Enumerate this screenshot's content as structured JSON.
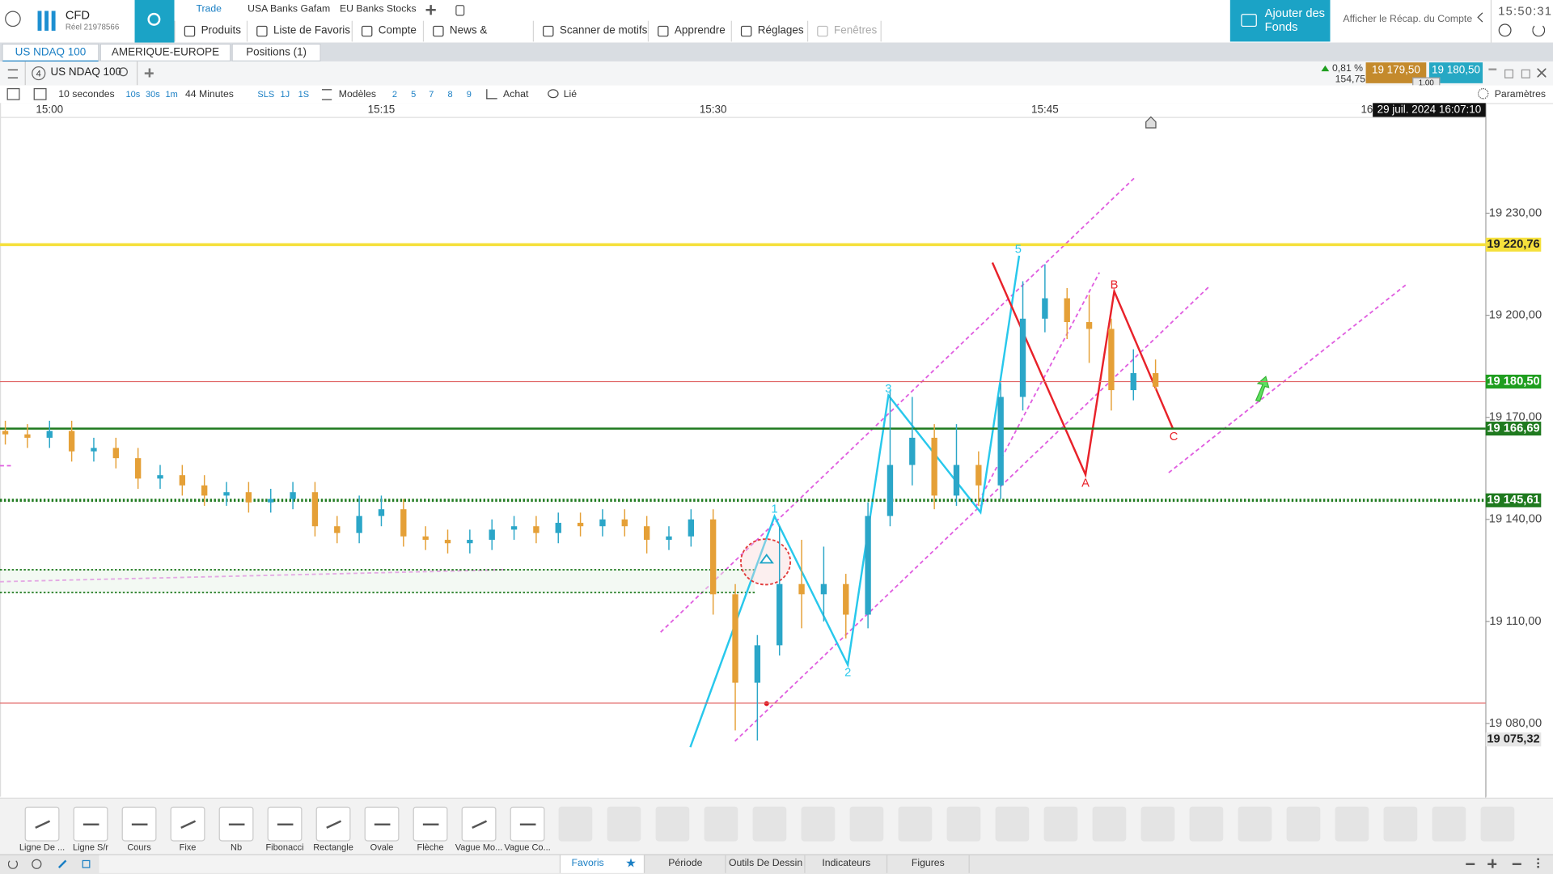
{
  "header": {
    "account_type": "CFD",
    "account_id": "Réel 21978566",
    "tabs": [
      "Trade",
      "USA Banks Gafam",
      "EU Banks Stocks"
    ],
    "menu": [
      "Produits",
      "Liste de Favoris",
      "Compte",
      "News & Analyses",
      "Scanner de motifs",
      "Apprendre",
      "Réglages",
      "Fenêtres"
    ],
    "fund_button": "Ajouter des Fonds",
    "account_summary": "Afficher le Récap. du Compte",
    "clock": "15:50:31"
  },
  "workspace_tabs": [
    "US NDAQ 100",
    "AMERIQUE-EUROPE",
    "Positions (1)"
  ],
  "instrument": {
    "badge": "4",
    "name": "US NDAQ 100",
    "change": "0,81 %",
    "change_points": "154,75",
    "sell": "19 179,50",
    "buy": "19 180,50",
    "quantity": "1.00"
  },
  "toolbar": {
    "interval": "10 secondes",
    "intervals": [
      "10s",
      "30s",
      "1m"
    ],
    "span": "44 Minutes",
    "ranges": [
      "SLS",
      "1J",
      "1S"
    ],
    "models": "Modèles",
    "numbers": [
      "2",
      "5",
      "7",
      "8",
      "9"
    ],
    "buy": "Achat",
    "linked": "Lié",
    "settings": "Paramètres"
  },
  "chart_data": {
    "type": "candlestick",
    "categories": [
      null,
      null,
      "15:00",
      null,
      null,
      null,
      null,
      null,
      null,
      null,
      null,
      null,
      null,
      null,
      null,
      null,
      null,
      "15:15",
      null,
      null,
      null,
      null,
      null,
      null,
      null,
      null,
      null,
      null,
      null,
      null,
      null,
      null,
      "15:30",
      null,
      null,
      null,
      null,
      null,
      null,
      null,
      null,
      null,
      null,
      null,
      null,
      null,
      null,
      "15:45",
      null,
      null,
      null,
      null,
      null
    ],
    "open": [
      19166,
      19165,
      19164,
      19166,
      19160,
      19161,
      19158,
      19152,
      19153,
      19150,
      19147,
      19148,
      19145,
      19146,
      19148,
      19138,
      19136,
      19141,
      19143,
      19135,
      19134,
      19133,
      19134,
      19137,
      19138,
      19136,
      19139,
      19138,
      19140,
      19138,
      19134,
      19135,
      19140,
      19118,
      19092,
      19103,
      19121,
      19118,
      19121,
      19112,
      19141,
      19156,
      19164,
      19147,
      19156,
      19150,
      19176,
      19199,
      19205,
      19198,
      19196,
      19178,
      19183
    ],
    "high": [
      19169,
      19168,
      19169,
      19169,
      19164,
      19164,
      19161,
      19156,
      19156,
      19153,
      19151,
      19151,
      19149,
      19151,
      19151,
      19141,
      19147,
      19147,
      19146,
      19138,
      19137,
      19137,
      19140,
      19141,
      19141,
      19142,
      19142,
      19143,
      19143,
      19141,
      19138,
      19143,
      19143,
      19121,
      19106,
      19138,
      19134,
      19132,
      19124,
      19145,
      19178,
      19176,
      19168,
      19168,
      19160,
      19180,
      19210,
      19215,
      19208,
      19206,
      19199,
      19190,
      19187
    ],
    "low": [
      19162,
      19161,
      19161,
      19157,
      19157,
      19155,
      19149,
      19149,
      19147,
      19144,
      19144,
      19142,
      19142,
      19143,
      19135,
      19133,
      19133,
      19138,
      19132,
      19131,
      19130,
      19130,
      19131,
      19134,
      19133,
      19133,
      19135,
      19135,
      19135,
      19130,
      19131,
      19132,
      19112,
      19078,
      19075,
      19100,
      19108,
      19110,
      19105,
      19108,
      19138,
      19150,
      19143,
      19144,
      19144,
      19146,
      19172,
      19195,
      19193,
      19186,
      19172,
      19175,
      19178
    ],
    "close": [
      19165,
      19164,
      19166,
      19160,
      19161,
      19158,
      19152,
      19153,
      19150,
      19147,
      19148,
      19145,
      19146,
      19148,
      19138,
      19136,
      19141,
      19143,
      19135,
      19134,
      19133,
      19134,
      19137,
      19138,
      19136,
      19139,
      19138,
      19140,
      19138,
      19134,
      19135,
      19140,
      19118,
      19092,
      19103,
      19121,
      19118,
      19121,
      19112,
      19141,
      19156,
      19164,
      19147,
      19156,
      19150,
      19176,
      19199,
      19205,
      19198,
      19196,
      19178,
      19183,
      19179
    ],
    "up_color": "#2ba6c8",
    "down_color": "#e5a037",
    "ylim": [
      19058.2,
      19258.3
    ],
    "yticks": [
      {
        "value": 19230,
        "label": "19 230,00"
      },
      {
        "value": 19200,
        "label": "19 200,00"
      },
      {
        "value": 19170,
        "label": "19 170,00"
      },
      {
        "value": 19140,
        "label": "19 140,00"
      },
      {
        "value": 19110,
        "label": "19 110,00"
      },
      {
        "value": 19080,
        "label": "19 080,00"
      }
    ],
    "grid": false,
    "x_partial_label": "16",
    "timestamp": "29 juil. 2024 16:07:10",
    "levels": [
      {
        "value": 19220.76,
        "label": "19 220,76",
        "color": "#f5e03c",
        "label_color": "#f5e03c",
        "label_text_color": "#222222",
        "style": "thick"
      },
      {
        "value": 19180.5,
        "label": "19 180,50",
        "color": "#e06666",
        "label_color": "#1f9e1f",
        "label_text_color": "#ffffff",
        "style": "solid"
      },
      {
        "value": 19166.69,
        "label": "19 166,69",
        "color": "#1f7a1f",
        "label_color": "#1f7a1f",
        "label_text_color": "#ffffff",
        "style": "medium"
      },
      {
        "value": 19145.61,
        "label": "19 145,61",
        "color": "#1f7a1f",
        "label_color": "#1f7a1f",
        "label_text_color": "#ffffff",
        "style": "dotted"
      },
      {
        "value": 19086,
        "color": "#e06666",
        "style": "solid"
      },
      {
        "value": 19075.32,
        "label": "19 075,32",
        "label_color": "#e6e6e6",
        "label_text_color": "#222222",
        "style": "none"
      }
    ],
    "annotations": [
      "1",
      "2",
      "3",
      "5",
      "A",
      "B",
      "C"
    ]
  },
  "drawing_tools": [
    "Ligne De ...",
    "Ligne S/r",
    "Cours",
    "Fixe",
    "Nb",
    "Fibonacci",
    "Rectangle",
    "Ovale",
    "Flèche",
    "Vague Mo...",
    "Vague Co..."
  ],
  "bottom_tabs": [
    "Favoris",
    "Période",
    "Outils De Dessin",
    "Indicateurs",
    "Figures"
  ]
}
